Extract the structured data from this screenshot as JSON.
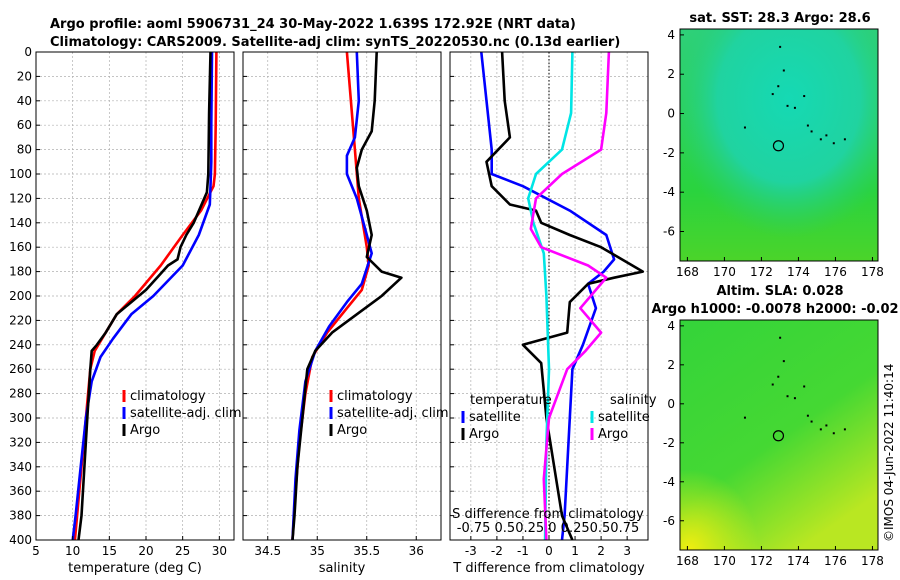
{
  "header": {
    "title_line1": "Argo profile: aoml 5906731_24 30-May-2022 1.639S 172.92E (NRT data)",
    "title_line2": "Climatology: CARS2009. Satellite-adj clim: synTS_20220530.nc (0.13d earlier)"
  },
  "watermark": "©IMOS 04-Jun-2022 11:40:14",
  "colors": {
    "climatology": "#ff0000",
    "satellite": "#0000ff",
    "argo": "#000000",
    "sal_satellite": "#00e5e5",
    "sal_argo": "#ff00ff"
  },
  "chart_data": [
    {
      "type": "line",
      "name": "temperature_profile",
      "xlabel": "temperature (deg C)",
      "ylim": [
        0,
        400
      ],
      "xlim": [
        5,
        32
      ],
      "xticks": [
        5,
        10,
        15,
        20,
        25,
        30
      ],
      "yticks": [
        0,
        20,
        40,
        60,
        80,
        100,
        120,
        140,
        160,
        180,
        200,
        220,
        240,
        260,
        280,
        300,
        320,
        340,
        360,
        380,
        400
      ],
      "legend": [
        "climatology",
        "satellite-adj. clim",
        "Argo"
      ],
      "series": [
        {
          "name": "climatology",
          "points": [
            [
              29.6,
              0
            ],
            [
              29.5,
              60
            ],
            [
              29.4,
              100
            ],
            [
              29.2,
              110
            ],
            [
              27.5,
              130
            ],
            [
              25,
              150
            ],
            [
              22,
              175
            ],
            [
              18.5,
              200
            ],
            [
              16,
              215
            ],
            [
              14.5,
              230
            ],
            [
              13,
              245
            ],
            [
              12.4,
              260
            ],
            [
              11.8,
              300
            ],
            [
              11.2,
              340
            ],
            [
              10.6,
              380
            ],
            [
              10.3,
              400
            ]
          ]
        },
        {
          "name": "satellite-adj. clim",
          "points": [
            [
              29,
              0
            ],
            [
              28.9,
              60
            ],
            [
              28.9,
              90
            ],
            [
              28.8,
              110
            ],
            [
              28.7,
              125
            ],
            [
              27.2,
              150
            ],
            [
              25,
              175
            ],
            [
              21,
              200
            ],
            [
              18,
              215
            ],
            [
              15.5,
              235
            ],
            [
              13.8,
              250
            ],
            [
              12.6,
              270
            ],
            [
              11.8,
              300
            ],
            [
              11.1,
              340
            ],
            [
              10.4,
              380
            ],
            [
              10,
              400
            ]
          ]
        },
        {
          "name": "Argo",
          "points": [
            [
              28.8,
              0
            ],
            [
              28.6,
              50
            ],
            [
              28.5,
              100
            ],
            [
              28.3,
              115
            ],
            [
              26.5,
              140
            ],
            [
              25.5,
              150
            ],
            [
              24.7,
              160
            ],
            [
              24.3,
              170
            ],
            [
              23,
              175
            ],
            [
              21.5,
              185
            ],
            [
              20,
              195
            ],
            [
              18,
              205
            ],
            [
              16,
              215
            ],
            [
              14.5,
              230
            ],
            [
              13.3,
              240
            ],
            [
              12.6,
              245
            ],
            [
              12.4,
              260
            ],
            [
              12,
              300
            ],
            [
              11.6,
              340
            ],
            [
              11.2,
              380
            ],
            [
              10.8,
              400
            ]
          ]
        }
      ]
    },
    {
      "type": "line",
      "name": "salinity_profile",
      "xlabel": "salinity",
      "ylim": [
        0,
        400
      ],
      "xlim": [
        34.25,
        36.25
      ],
      "xticks": [
        34.5,
        35,
        35.5,
        36
      ],
      "legend": [
        "climatology",
        "satellite-adj. clim",
        "Argo"
      ],
      "series": [
        {
          "name": "climatology",
          "points": [
            [
              35.3,
              0
            ],
            [
              35.33,
              30
            ],
            [
              35.38,
              80
            ],
            [
              35.42,
              120
            ],
            [
              35.5,
              160
            ],
            [
              35.52,
              175
            ],
            [
              35.45,
              195
            ],
            [
              35.3,
              210
            ],
            [
              35.1,
              230
            ],
            [
              34.95,
              250
            ],
            [
              34.88,
              280
            ],
            [
              34.82,
              320
            ],
            [
              34.78,
              360
            ],
            [
              34.75,
              400
            ]
          ]
        },
        {
          "name": "satellite-adj. clim",
          "points": [
            [
              35.4,
              0
            ],
            [
              35.42,
              40
            ],
            [
              35.38,
              70
            ],
            [
              35.3,
              85
            ],
            [
              35.3,
              100
            ],
            [
              35.4,
              120
            ],
            [
              35.5,
              150
            ],
            [
              35.55,
              165
            ],
            [
              35.45,
              190
            ],
            [
              35.3,
              205
            ],
            [
              35.12,
              225
            ],
            [
              34.98,
              245
            ],
            [
              34.88,
              270
            ],
            [
              34.82,
              310
            ],
            [
              34.78,
              350
            ],
            [
              34.75,
              400
            ]
          ]
        },
        {
          "name": "Argo",
          "points": [
            [
              35.6,
              0
            ],
            [
              35.58,
              40
            ],
            [
              35.55,
              65
            ],
            [
              35.45,
              80
            ],
            [
              35.4,
              95
            ],
            [
              35.42,
              110
            ],
            [
              35.5,
              130
            ],
            [
              35.55,
              150
            ],
            [
              35.5,
              168
            ],
            [
              35.65,
              180
            ],
            [
              35.85,
              185
            ],
            [
              35.65,
              200
            ],
            [
              35.4,
              215
            ],
            [
              35.15,
              230
            ],
            [
              34.98,
              245
            ],
            [
              34.9,
              260
            ],
            [
              34.85,
              300
            ],
            [
              34.8,
              340
            ],
            [
              34.77,
              380
            ],
            [
              34.75,
              400
            ]
          ]
        }
      ]
    },
    {
      "type": "line",
      "name": "difference_from_climatology",
      "xlabel": "T difference from climatology",
      "ylim": [
        0,
        400
      ],
      "xlim": [
        -3.8,
        3.8
      ],
      "xticks": [
        -3,
        -2,
        -1,
        0,
        1,
        2,
        3
      ],
      "sub_xlabel": "S difference from climatology",
      "sub_xticks": "-0.75 0.50.25  0  0.250.50.75",
      "legend": [
        [
          "temperature",
          "satellite",
          "Argo"
        ],
        [
          "salinity",
          "satellite",
          "Argo"
        ]
      ],
      "series": [
        {
          "name": "temperature satellite",
          "points": [
            [
              -2.6,
              0
            ],
            [
              -2.4,
              40
            ],
            [
              -2.2,
              80
            ],
            [
              -2.2,
              100
            ],
            [
              -1,
              110
            ],
            [
              0.8,
              130
            ],
            [
              2.2,
              150
            ],
            [
              2.5,
              170
            ],
            [
              2.1,
              180
            ],
            [
              1.5,
              190
            ],
            [
              1.8,
              210
            ],
            [
              1.3,
              240
            ],
            [
              0.9,
              260
            ],
            [
              0.8,
              300
            ],
            [
              0.7,
              340
            ],
            [
              0.6,
              380
            ],
            [
              0.5,
              400
            ]
          ]
        },
        {
          "name": "temperature Argo",
          "points": [
            [
              -1.8,
              0
            ],
            [
              -1.7,
              40
            ],
            [
              -1.5,
              70
            ],
            [
              -2.4,
              90
            ],
            [
              -2.2,
              110
            ],
            [
              -1.5,
              125
            ],
            [
              -0.5,
              130
            ],
            [
              -0.3,
              140
            ],
            [
              0.8,
              150
            ],
            [
              2,
              160
            ],
            [
              3.2,
              175
            ],
            [
              3.6,
              180
            ],
            [
              2.5,
              185
            ],
            [
              1.5,
              190
            ],
            [
              0.8,
              205
            ],
            [
              0.7,
              230
            ],
            [
              -1,
              240
            ],
            [
              -0.3,
              255
            ],
            [
              -0.1,
              300
            ],
            [
              0.2,
              340
            ],
            [
              0.5,
              380
            ],
            [
              0.9,
              400
            ]
          ]
        },
        {
          "name": "salinity satellite",
          "points": [
            [
              0.9,
              0
            ],
            [
              0.85,
              50
            ],
            [
              0.5,
              80
            ],
            [
              -0.5,
              100
            ],
            [
              -0.8,
              120
            ],
            [
              -0.6,
              140
            ],
            [
              -0.2,
              165
            ],
            [
              -0.1,
              200
            ],
            [
              0,
              260
            ],
            [
              -0.1,
              320
            ],
            [
              -0.15,
              400
            ]
          ]
        },
        {
          "name": "salinity Argo",
          "points": [
            [
              2.3,
              0
            ],
            [
              2.2,
              50
            ],
            [
              2,
              80
            ],
            [
              0.5,
              100
            ],
            [
              -0.5,
              120
            ],
            [
              -0.7,
              145
            ],
            [
              -0.3,
              160
            ],
            [
              1.5,
              175
            ],
            [
              2.2,
              185
            ],
            [
              1.8,
              195
            ],
            [
              1.2,
              210
            ],
            [
              2,
              230
            ],
            [
              1.4,
              245
            ],
            [
              0.7,
              260
            ],
            [
              0,
              300
            ],
            [
              -0.2,
              350
            ],
            [
              -0.1,
              400
            ]
          ]
        }
      ]
    },
    {
      "type": "heatmap",
      "name": "satellite_sst_map",
      "title": "sat. SST: 28.3 Argo: 28.6",
      "xticks": [
        168,
        170,
        172,
        174,
        176,
        178
      ],
      "yticks": [
        4,
        2,
        0,
        -2,
        -4,
        -6
      ],
      "xlim": [
        167.6,
        178.3
      ],
      "ylim": [
        -7.5,
        4.3
      ],
      "marker": {
        "lon": 172.92,
        "lat": -1.639
      }
    },
    {
      "type": "heatmap",
      "name": "altimetry_sla_map",
      "title": "Altim. SLA: 0.028",
      "subtitle": "Argo h1000: -0.0078 h2000: -0.02",
      "xticks": [
        168,
        170,
        172,
        174,
        176,
        178
      ],
      "yticks": [
        4,
        2,
        0,
        -2,
        -4,
        -6
      ],
      "xlim": [
        167.6,
        178.3
      ],
      "ylim": [
        -7.5,
        4.3
      ],
      "marker": {
        "lon": 172.92,
        "lat": -1.639
      }
    }
  ]
}
